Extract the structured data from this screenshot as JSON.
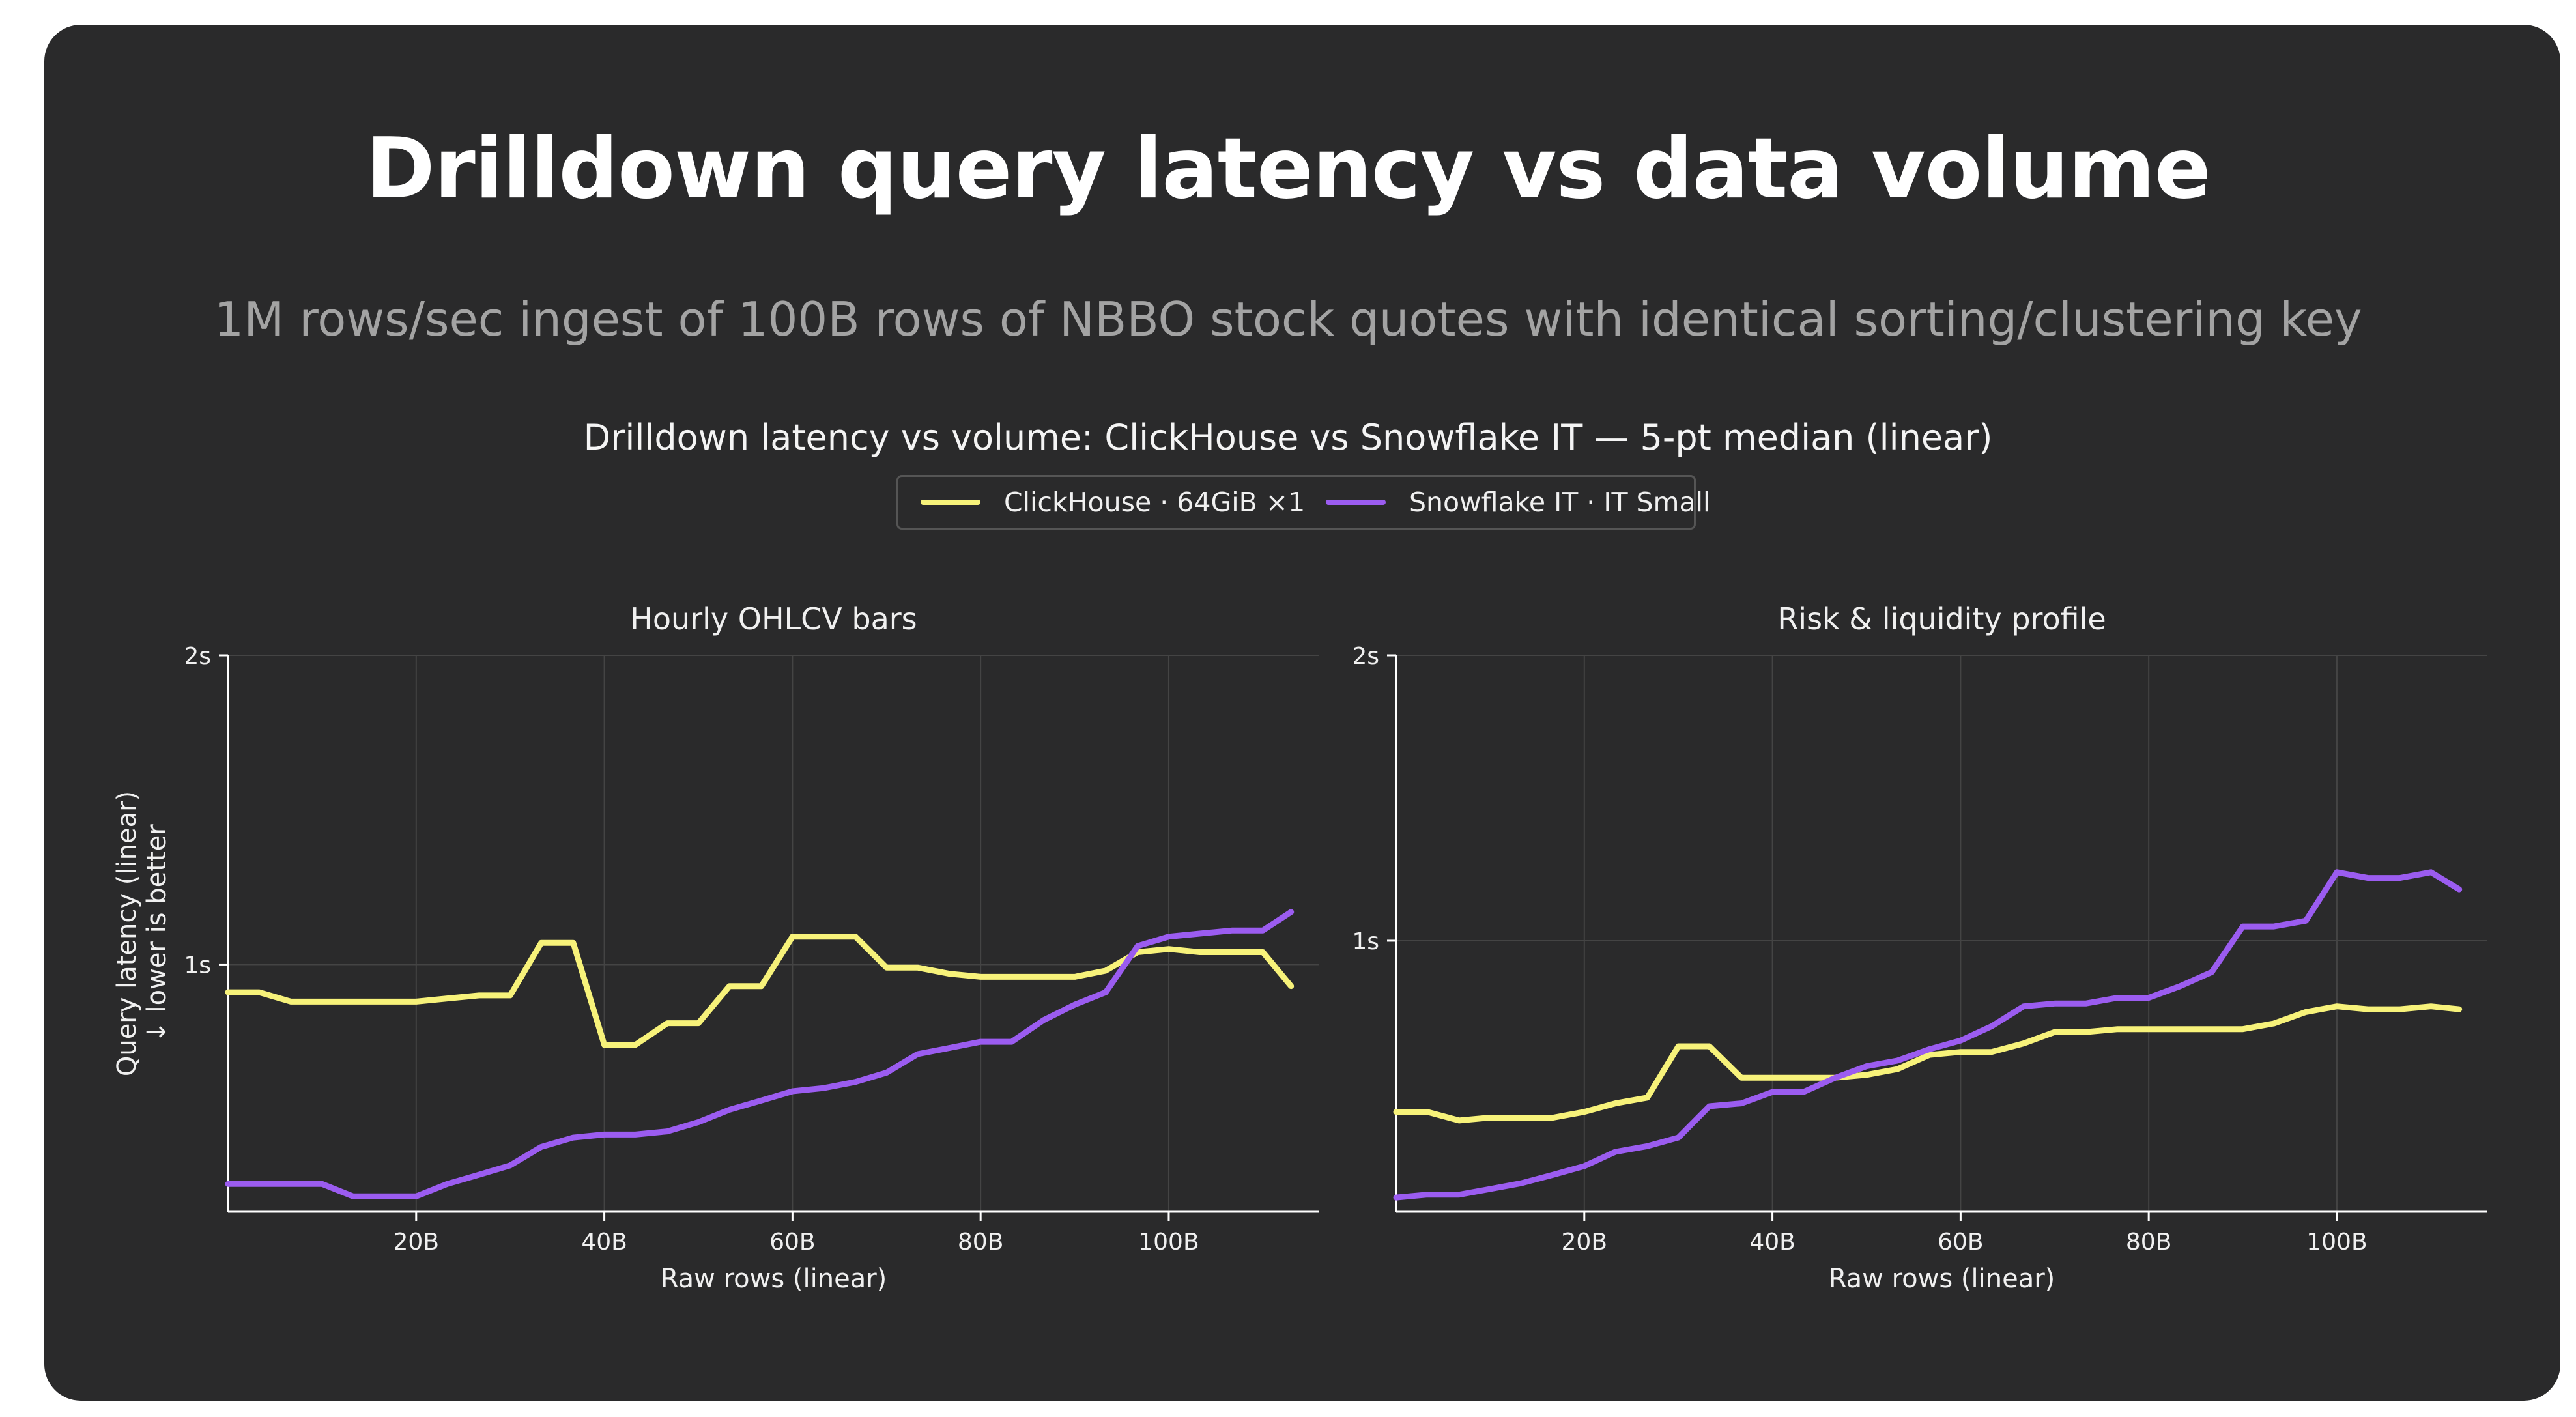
{
  "page": {
    "title": "Drilldown query latency vs data volume",
    "subtitle": "1M rows/sec ingest of 100B rows of NBBO stock quotes with identical sorting/clustering key"
  },
  "figure": {
    "title": "Drilldown latency vs volume: ClickHouse vs Snowflake IT — 5-pt median (linear)"
  },
  "legend": [
    {
      "label": "ClickHouse · 64GiB ×1",
      "color": "#f7f27a"
    },
    {
      "label": "Snowflake IT · IT Small",
      "color": "#9b5cf0"
    }
  ],
  "colors": {
    "background": "#2a2a2b",
    "clickhouse": "#f7f27a",
    "snowflake": "#9b5cf0",
    "grid": "#444444",
    "axis": "#ffffff"
  },
  "chart_data": [
    {
      "type": "line",
      "title": "Hourly OHLCV bars",
      "xlabel": "Raw rows (linear)",
      "ylabel": "Query latency (linear)",
      "ylabel2": "↓ lower is better",
      "xlim": [
        0,
        116
      ],
      "ylim": [
        0.2,
        2.0
      ],
      "xticks": [
        20,
        40,
        60,
        80,
        100
      ],
      "xtick_labels": [
        "20B",
        "40B",
        "60B",
        "80B",
        "100B"
      ],
      "yticks": [
        1.0,
        2.0
      ],
      "ytick_labels": [
        "1s",
        "2s"
      ],
      "grid": true,
      "x": [
        0,
        3.3,
        6.7,
        10,
        13.3,
        16.7,
        20,
        23.3,
        26.7,
        30,
        33.3,
        36.7,
        40,
        43.3,
        46.7,
        50,
        53.3,
        56.7,
        60,
        63.3,
        66.7,
        70,
        73.3,
        76.7,
        80,
        83.3,
        86.7,
        90,
        93.3,
        96.7,
        100,
        103.3,
        106.7,
        110,
        113
      ],
      "series": [
        {
          "name": "ClickHouse · 64GiB ×1",
          "values": [
            0.91,
            0.91,
            0.88,
            0.88,
            0.88,
            0.88,
            0.88,
            0.89,
            0.9,
            0.9,
            1.07,
            1.07,
            0.74,
            0.74,
            0.81,
            0.81,
            0.93,
            0.93,
            1.09,
            1.09,
            1.09,
            0.99,
            0.99,
            0.97,
            0.96,
            0.96,
            0.96,
            0.96,
            0.98,
            1.04,
            1.05,
            1.04,
            1.04,
            1.04,
            0.93
          ]
        },
        {
          "name": "Snowflake IT · IT Small",
          "values": [
            0.29,
            0.29,
            0.29,
            0.29,
            0.25,
            0.25,
            0.25,
            0.29,
            0.32,
            0.35,
            0.41,
            0.44,
            0.45,
            0.45,
            0.46,
            0.49,
            0.53,
            0.56,
            0.59,
            0.6,
            0.62,
            0.65,
            0.71,
            0.73,
            0.75,
            0.75,
            0.82,
            0.87,
            0.91,
            1.06,
            1.09,
            1.1,
            1.11,
            1.11,
            1.17
          ]
        }
      ]
    },
    {
      "type": "line",
      "title": "Risk & liquidity profile",
      "xlabel": "Raw rows (linear)",
      "ylabel": "",
      "xlim": [
        0,
        116
      ],
      "ylim": [
        0.05,
        2.0
      ],
      "xticks": [
        20,
        40,
        60,
        80,
        100
      ],
      "xtick_labels": [
        "20B",
        "40B",
        "60B",
        "80B",
        "100B"
      ],
      "yticks": [
        1.0,
        2.0
      ],
      "ytick_labels": [
        "1s",
        "2s"
      ],
      "grid": true,
      "x": [
        0,
        3.3,
        6.7,
        10,
        13.3,
        16.7,
        20,
        23.3,
        26.7,
        30,
        33.3,
        36.7,
        40,
        43.3,
        46.7,
        50,
        53.3,
        56.7,
        60,
        63.3,
        66.7,
        70,
        73.3,
        76.7,
        80,
        83.3,
        86.7,
        90,
        93.3,
        96.7,
        100,
        103.3,
        106.7,
        110,
        113
      ],
      "series": [
        {
          "name": "ClickHouse · 64GiB ×1",
          "values": [
            0.4,
            0.4,
            0.37,
            0.38,
            0.38,
            0.38,
            0.4,
            0.43,
            0.45,
            0.63,
            0.63,
            0.52,
            0.52,
            0.52,
            0.52,
            0.53,
            0.55,
            0.6,
            0.61,
            0.61,
            0.64,
            0.68,
            0.68,
            0.69,
            0.69,
            0.69,
            0.69,
            0.69,
            0.71,
            0.75,
            0.77,
            0.76,
            0.76,
            0.77,
            0.76
          ]
        },
        {
          "name": "Snowflake IT · IT Small",
          "values": [
            0.1,
            0.11,
            0.11,
            0.13,
            0.15,
            0.18,
            0.21,
            0.26,
            0.28,
            0.31,
            0.42,
            0.43,
            0.47,
            0.47,
            0.52,
            0.56,
            0.58,
            0.62,
            0.65,
            0.7,
            0.77,
            0.78,
            0.78,
            0.8,
            0.8,
            0.84,
            0.89,
            1.05,
            1.05,
            1.07,
            1.24,
            1.22,
            1.22,
            1.24,
            1.18
          ]
        }
      ]
    }
  ]
}
